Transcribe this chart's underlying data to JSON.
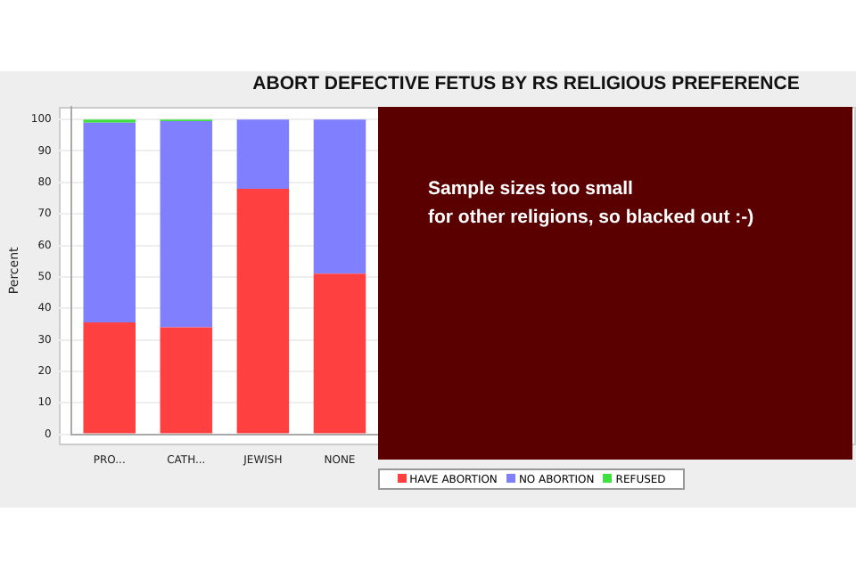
{
  "chart_data": {
    "type": "bar",
    "title": "ABORT DEFECTIVE FETUS BY RS RELIGIOUS PREFERENCE",
    "ylabel": "Percent",
    "categories": [
      "PRO...",
      "CATH...",
      "JEWISH",
      "NONE"
    ],
    "stacked": true,
    "series": [
      {
        "name": "HAVE ABORTION",
        "color": "#ff4040",
        "values": [
          35.5,
          34,
          78,
          51
        ]
      },
      {
        "name": "NO ABORTION",
        "color": "#8080ff",
        "values": [
          63.5,
          65.5,
          22,
          49
        ]
      },
      {
        "name": "REFUSED",
        "color": "#40e040",
        "values": [
          1,
          0.5,
          0,
          0
        ]
      }
    ],
    "ylim": [
      0,
      104
    ],
    "yticks": [
      0,
      10,
      20,
      30,
      40,
      50,
      60,
      70,
      80,
      90,
      100
    ],
    "grid": "y",
    "legend": "bottom",
    "annotations": [
      "Sample sizes too small\nfor other religions, so blacked out :-)"
    ]
  }
}
